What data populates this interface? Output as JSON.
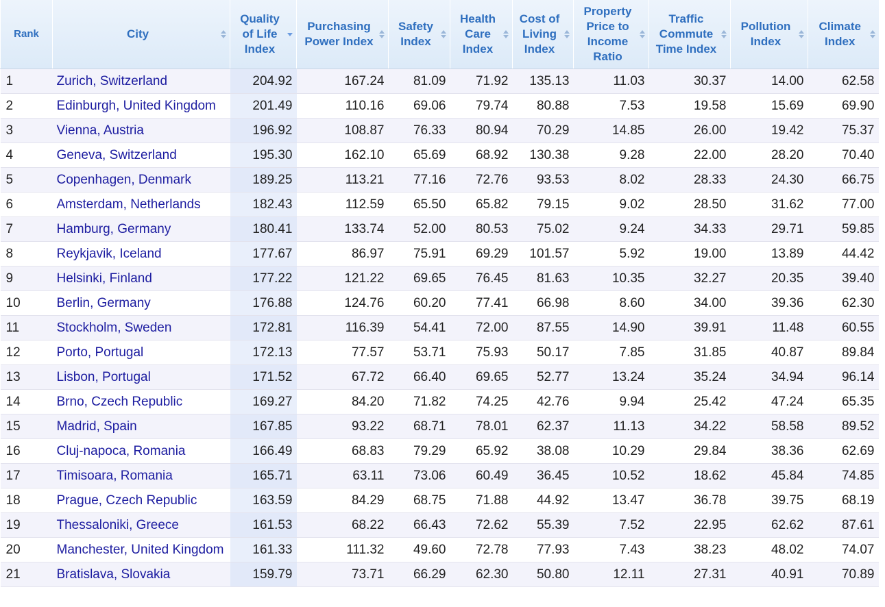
{
  "table": {
    "headers": [
      "Rank",
      "City",
      "Quality of Life Index",
      "Purchasing Power Index",
      "Safety Index",
      "Health Care Index",
      "Cost of Living Index",
      "Property Price to Income Ratio",
      "Traffic Commute Time Index",
      "Pollution Index",
      "Climate Index"
    ],
    "rows": [
      [
        "1",
        "Zurich, Switzerland",
        "204.92",
        "167.24",
        "81.09",
        "71.92",
        "135.13",
        "11.03",
        "30.37",
        "14.00",
        "62.58"
      ],
      [
        "2",
        "Edinburgh, United Kingdom",
        "201.49",
        "110.16",
        "69.06",
        "79.74",
        "80.88",
        "7.53",
        "19.58",
        "15.69",
        "69.90"
      ],
      [
        "3",
        "Vienna, Austria",
        "196.92",
        "108.87",
        "76.33",
        "80.94",
        "70.29",
        "14.85",
        "26.00",
        "19.42",
        "75.37"
      ],
      [
        "4",
        "Geneva, Switzerland",
        "195.30",
        "162.10",
        "65.69",
        "68.92",
        "130.38",
        "9.28",
        "22.00",
        "28.20",
        "70.40"
      ],
      [
        "5",
        "Copenhagen, Denmark",
        "189.25",
        "113.21",
        "77.16",
        "72.76",
        "93.53",
        "8.02",
        "28.33",
        "24.30",
        "66.75"
      ],
      [
        "6",
        "Amsterdam, Netherlands",
        "182.43",
        "112.59",
        "65.50",
        "65.82",
        "79.15",
        "9.02",
        "28.50",
        "31.62",
        "77.00"
      ],
      [
        "7",
        "Hamburg, Germany",
        "180.41",
        "133.74",
        "52.00",
        "80.53",
        "75.02",
        "9.24",
        "34.33",
        "29.71",
        "59.85"
      ],
      [
        "8",
        "Reykjavik, Iceland",
        "177.67",
        "86.97",
        "75.91",
        "69.29",
        "101.57",
        "5.92",
        "19.00",
        "13.89",
        "44.42"
      ],
      [
        "9",
        "Helsinki, Finland",
        "177.22",
        "121.22",
        "69.65",
        "76.45",
        "81.63",
        "10.35",
        "32.27",
        "20.35",
        "39.40"
      ],
      [
        "10",
        "Berlin, Germany",
        "176.88",
        "124.76",
        "60.20",
        "77.41",
        "66.98",
        "8.60",
        "34.00",
        "39.36",
        "62.30"
      ],
      [
        "11",
        "Stockholm, Sweden",
        "172.81",
        "116.39",
        "54.41",
        "72.00",
        "87.55",
        "14.90",
        "39.91",
        "11.48",
        "60.55"
      ],
      [
        "12",
        "Porto, Portugal",
        "172.13",
        "77.57",
        "53.71",
        "75.93",
        "50.17",
        "7.85",
        "31.85",
        "40.87",
        "89.84"
      ],
      [
        "13",
        "Lisbon, Portugal",
        "171.52",
        "67.72",
        "66.40",
        "69.65",
        "52.77",
        "13.24",
        "35.24",
        "34.94",
        "96.14"
      ],
      [
        "14",
        "Brno, Czech Republic",
        "169.27",
        "84.20",
        "71.82",
        "74.25",
        "42.76",
        "9.94",
        "25.42",
        "47.24",
        "65.35"
      ],
      [
        "15",
        "Madrid, Spain",
        "167.85",
        "93.22",
        "68.71",
        "78.01",
        "62.37",
        "11.13",
        "34.22",
        "58.58",
        "89.52"
      ],
      [
        "16",
        "Cluj-napoca, Romania",
        "166.49",
        "68.83",
        "79.29",
        "65.92",
        "38.08",
        "10.29",
        "29.84",
        "38.36",
        "62.69"
      ],
      [
        "17",
        "Timisoara, Romania",
        "165.71",
        "63.11",
        "73.06",
        "60.49",
        "36.45",
        "10.52",
        "18.62",
        "45.84",
        "74.85"
      ],
      [
        "18",
        "Prague, Czech Republic",
        "163.59",
        "84.29",
        "68.75",
        "71.88",
        "44.92",
        "13.47",
        "36.78",
        "39.75",
        "68.19"
      ],
      [
        "19",
        "Thessaloniki, Greece",
        "161.53",
        "68.22",
        "66.43",
        "72.62",
        "55.39",
        "7.52",
        "22.95",
        "62.62",
        "87.61"
      ],
      [
        "20",
        "Manchester, United Kingdom",
        "161.33",
        "111.32",
        "49.60",
        "72.78",
        "77.93",
        "7.43",
        "38.23",
        "48.02",
        "74.07"
      ],
      [
        "21",
        "Bratislava, Slovakia",
        "159.79",
        "73.71",
        "66.29",
        "62.30",
        "50.80",
        "12.11",
        "27.31",
        "40.91",
        "70.89"
      ]
    ]
  }
}
